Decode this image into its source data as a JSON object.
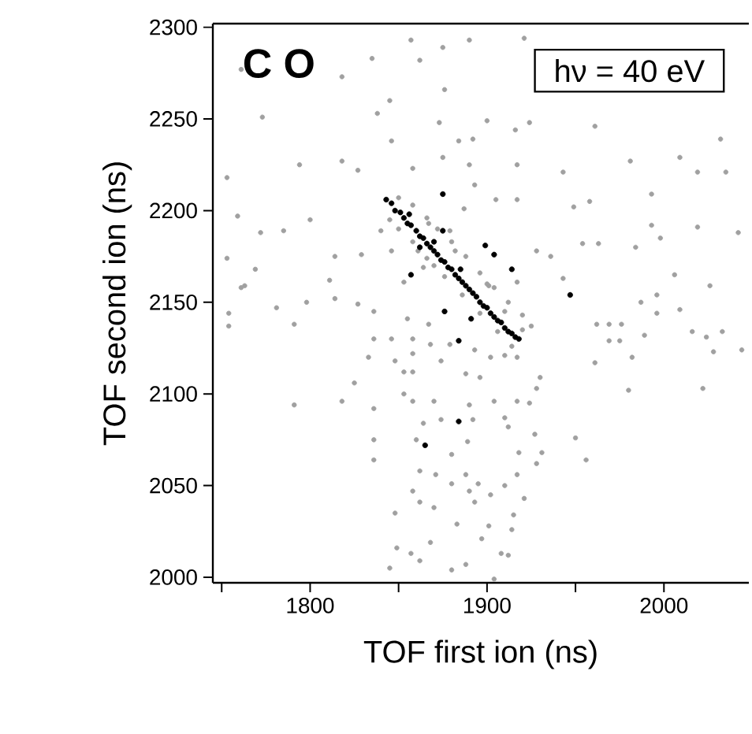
{
  "chart_data": {
    "type": "scatter",
    "xlabel": "TOF first ion (ns)",
    "ylabel": "TOF second ion (ns)",
    "annotations": [
      "C O",
      "hν = 40 eV"
    ],
    "xlim": [
      1745,
      2048
    ],
    "ylim": [
      1997,
      2302
    ],
    "xticks": [
      {
        "value": 1750,
        "label": null
      },
      1800,
      {
        "value": 1850,
        "label": null
      },
      1900,
      {
        "value": 1950,
        "label": null
      },
      2000
    ],
    "yticks": [
      2000,
      2050,
      2100,
      2150,
      2200,
      2250,
      2300
    ],
    "marker": "circle",
    "series": [
      {
        "color": "#a0a0a0",
        "x": [
          1761,
          1857,
          1921,
          1890,
          1875,
          1862,
          1835,
          1818,
          1773,
          1838,
          1845,
          1876,
          1873,
          1884,
          1892,
          1900,
          1924,
          1916,
          1961,
          2032,
          1846,
          1875,
          1890,
          1858,
          1818,
          1794,
          1753,
          1827,
          1917,
          1943,
          1981,
          2009,
          2019,
          2035,
          1993,
          1958,
          1949,
          1917,
          1893,
          1905,
          1759,
          1785,
          1800,
          1772,
          1814,
          1829,
          1753,
          1769,
          1763,
          1840,
          1846,
          1861,
          1879,
          1887,
          1867,
          1928,
          1936,
          1954,
          1963,
          1984,
          1998,
          2019,
          2042,
          1993,
          2006,
          2026,
          1943,
          1917,
          1901,
          1864,
          1853,
          1811,
          1761,
          1754,
          1754,
          1781,
          1791,
          1798,
          1814,
          1827,
          1836,
          1836,
          1846,
          1858,
          1868,
          1879,
          1848,
          1833,
          1855,
          1867,
          1858,
          1874,
          1888,
          1896,
          1893,
          1902,
          1910,
          1917,
          1930,
          1853,
          1858,
          1825,
          1853,
          1858,
          1870,
          1890,
          1874,
          1892,
          1904,
          1917,
          1924,
          1928,
          1910,
          1864,
          1860,
          1836,
          1836,
          1836,
          1818,
          1791,
          1927,
          1931,
          1928,
          1918,
          1912,
          1889,
          1880,
          1862,
          1871,
          1880,
          1888,
          1895,
          1902,
          1910,
          1917,
          1858,
          1862,
          1870,
          1890,
          1893,
          1921,
          1915,
          1914,
          1848,
          1883,
          1901,
          1897,
          1868,
          1849,
          1857,
          1908,
          1912,
          1862,
          1845,
          1880,
          1888,
          1904,
          1950,
          1956,
          1961,
          1982,
          1980,
          2022,
          2028,
          2009,
          1996,
          1987,
          1989,
          1976,
          1969,
          1975,
          1969,
          1962,
          2016,
          2024,
          2033,
          2044,
          1996,
          1850,
          1858,
          1866,
          1872,
          1880,
          1888,
          1896,
          1904,
          1912,
          1920,
          1925,
          1850,
          1858,
          1866,
          1876,
          1886,
          1896,
          1906,
          1914,
          1845,
          1882,
          1900,
          1910,
          1920,
          1870
        ],
        "values": [
          2277,
          2293,
          2294,
          2293,
          2289,
          2282,
          2283,
          2273,
          2251,
          2253,
          2260,
          2266,
          2248,
          2238,
          2239,
          2249,
          2248,
          2244,
          2246,
          2239,
          2238,
          2229,
          2225,
          2223,
          2227,
          2225,
          2218,
          2222,
          2225,
          2221,
          2227,
          2229,
          2221,
          2221,
          2209,
          2205,
          2202,
          2206,
          2214,
          2206,
          2197,
          2189,
          2195,
          2188,
          2175,
          2176,
          2174,
          2168,
          2159,
          2189,
          2178,
          2178,
          2189,
          2201,
          2193,
          2178,
          2175,
          2182,
          2182,
          2180,
          2185,
          2191,
          2188,
          2192,
          2165,
          2159,
          2163,
          2161,
          2159,
          2169,
          2161,
          2162,
          2158,
          2144,
          2137,
          2147,
          2138,
          2150,
          2152,
          2149,
          2145,
          2130,
          2130,
          2130,
          2127,
          2127,
          2118,
          2120,
          2141,
          2138,
          2122,
          2118,
          2111,
          2109,
          2124,
          2120,
          2121,
          2120,
          2109,
          2112,
          2112,
          2106,
          2100,
          2096,
          2096,
          2094,
          2086,
          2086,
          2096,
          2096,
          2095,
          2103,
          2087,
          2084,
          2075,
          2092,
          2075,
          2064,
          2096,
          2094,
          2078,
          2068,
          2062,
          2068,
          2082,
          2074,
          2067,
          2058,
          2056,
          2051,
          2056,
          2051,
          2045,
          2050,
          2056,
          2047,
          2041,
          2038,
          2047,
          2041,
          2043,
          2034,
          2026,
          2035,
          2029,
          2028,
          2021,
          2019,
          2016,
          2013,
          2013,
          2012,
          2009,
          2005,
          2004,
          2007,
          1999,
          2076,
          2064,
          2117,
          2120,
          2102,
          2103,
          2123,
          2146,
          2154,
          2150,
          2132,
          2138,
          2129,
          2129,
          2138,
          2138,
          2134,
          2131,
          2134,
          2124,
          2144,
          2207,
          2203,
          2196,
          2190,
          2183,
          2175,
          2166,
          2158,
          2150,
          2143,
          2137,
          2190,
          2183,
          2174,
          2164,
          2154,
          2144,
          2134,
          2126,
          2195,
          2178,
          2160,
          2145,
          2135,
          2170
        ]
      },
      {
        "color": "#000000",
        "x": [
          1875,
          1899,
          1914,
          1904,
          1875,
          1857,
          1947,
          1876,
          1891,
          1884,
          1884,
          1865,
          1843,
          1846,
          1848,
          1851,
          1853,
          1855,
          1857,
          1860,
          1862,
          1864,
          1866,
          1868,
          1870,
          1872,
          1874,
          1876,
          1878,
          1880,
          1882,
          1884,
          1886,
          1888,
          1890,
          1892,
          1894,
          1896,
          1898,
          1900,
          1902,
          1904,
          1906,
          1908,
          1910,
          1912,
          1914,
          1916,
          1918,
          1856,
          1870,
          1885,
          1862
        ],
        "values": [
          2209,
          2181,
          2168,
          2176,
          2189,
          2165,
          2154,
          2145,
          2141,
          2129,
          2085,
          2072,
          2206,
          2204,
          2200,
          2199,
          2196,
          2193,
          2192,
          2189,
          2186,
          2185,
          2182,
          2180,
          2178,
          2176,
          2173,
          2172,
          2169,
          2168,
          2165,
          2163,
          2161,
          2159,
          2157,
          2155,
          2153,
          2150,
          2148,
          2147,
          2144,
          2142,
          2140,
          2139,
          2136,
          2134,
          2133,
          2131,
          2130,
          2198,
          2183,
          2168,
          2180
        ]
      }
    ]
  }
}
